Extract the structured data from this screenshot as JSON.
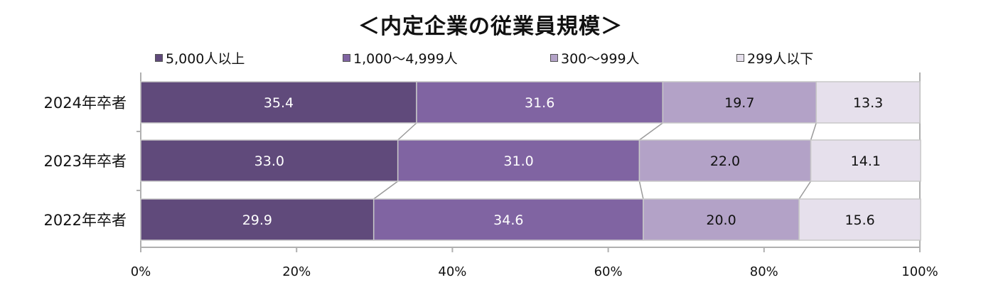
{
  "chart_data": {
    "type": "bar",
    "orientation": "horizontal",
    "stacked": "percent",
    "title": "＜内定企業の従業員規模＞",
    "categories": [
      "2024年卒者",
      "2023年卒者",
      "2022年卒者"
    ],
    "series": [
      {
        "name": "5,000人以上",
        "color": "#604a7b",
        "values": [
          35.4,
          33.0,
          29.9
        ]
      },
      {
        "name": "1,000～4,999人",
        "color": "#8064a2",
        "values": [
          31.6,
          31.0,
          34.6
        ]
      },
      {
        "name": "300～999人",
        "color": "#b3a2c7",
        "values": [
          19.7,
          22.0,
          20.0
        ]
      },
      {
        "name": "299人以下",
        "color": "#e6e0ec",
        "values": [
          13.3,
          14.1,
          15.6
        ]
      }
    ],
    "value_labels": [
      [
        "35.4",
        "33.0",
        "29.9"
      ],
      [
        "31.6",
        "31.0",
        "34.6"
      ],
      [
        "19.7",
        "22.0",
        "20.0"
      ],
      [
        "13.3",
        "14.1",
        "15.6"
      ]
    ],
    "x_ticks": [
      "0%",
      "20%",
      "40%",
      "60%",
      "80%",
      "100%"
    ],
    "xlim": [
      0,
      100
    ],
    "legend_position": "top",
    "series_lines": true,
    "grid": false
  }
}
